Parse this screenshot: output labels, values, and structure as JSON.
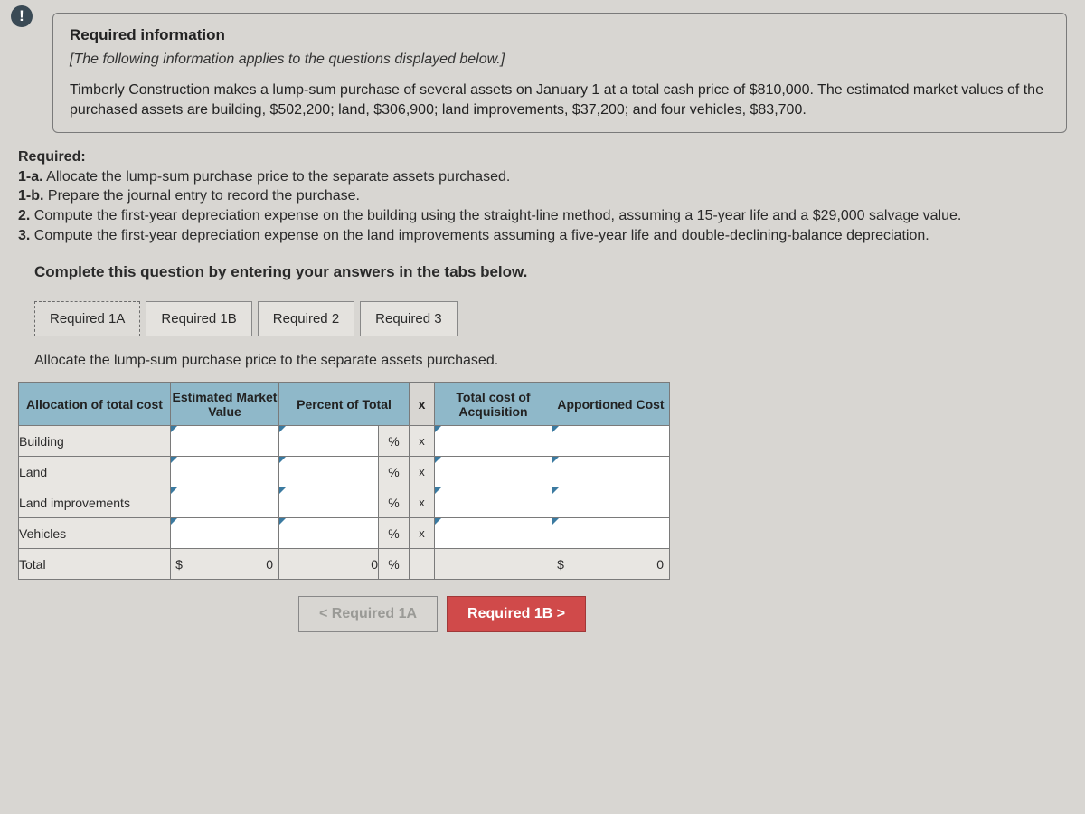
{
  "alert_glyph": "!",
  "info": {
    "title": "Required information",
    "italic": "[The following information applies to the questions displayed below.]",
    "body": "Timberly Construction makes a lump-sum purchase of several assets on January 1 at a total cash price of $810,000. The estimated market values of the purchased assets are building, $502,200; land, $306,900; land improvements, $37,200; and four vehicles, $83,700."
  },
  "required": {
    "heading": "Required:",
    "items": [
      "1-a. Allocate the lump-sum purchase price to the separate assets purchased.",
      "1-b. Prepare the journal entry to record the purchase.",
      "2. Compute the first-year depreciation expense on the building using the straight-line method, assuming a 15-year life and a $29,000 salvage value.",
      "3. Compute the first-year depreciation expense on the land improvements assuming a five-year life and double-declining-balance depreciation."
    ]
  },
  "instruction": "Complete this question by entering your answers in the tabs below.",
  "tabs": [
    "Required 1A",
    "Required 1B",
    "Required 2",
    "Required 3"
  ],
  "active_tab_index": 0,
  "tab_instruction": "Allocate the lump-sum purchase price to the separate assets purchased.",
  "table": {
    "headers": {
      "col1": "Allocation of total cost",
      "col2": "Estimated Market Value",
      "col3": "Percent of Total",
      "mult": "x",
      "col4": "Total cost of Acquisition",
      "col5": "Apportioned Cost"
    },
    "rows": [
      {
        "label": "Building",
        "pct_sym": "%",
        "mult": "x"
      },
      {
        "label": "Land",
        "pct_sym": "%",
        "mult": "x"
      },
      {
        "label": "Land improvements",
        "pct_sym": "%",
        "mult": "x"
      },
      {
        "label": "Vehicles",
        "pct_sym": "%",
        "mult": "x"
      }
    ],
    "total": {
      "label": "Total",
      "mv_prefix": "$",
      "mv_value": "0",
      "pct_value": "0",
      "pct_sym": "%",
      "app_prefix": "$",
      "app_value": "0"
    }
  },
  "nav": {
    "prev": "<   Required 1A",
    "next": "Required 1B   >"
  },
  "colors": {
    "header_bg": "#8fb8c9",
    "nav_next_bg": "#d04a4a"
  }
}
